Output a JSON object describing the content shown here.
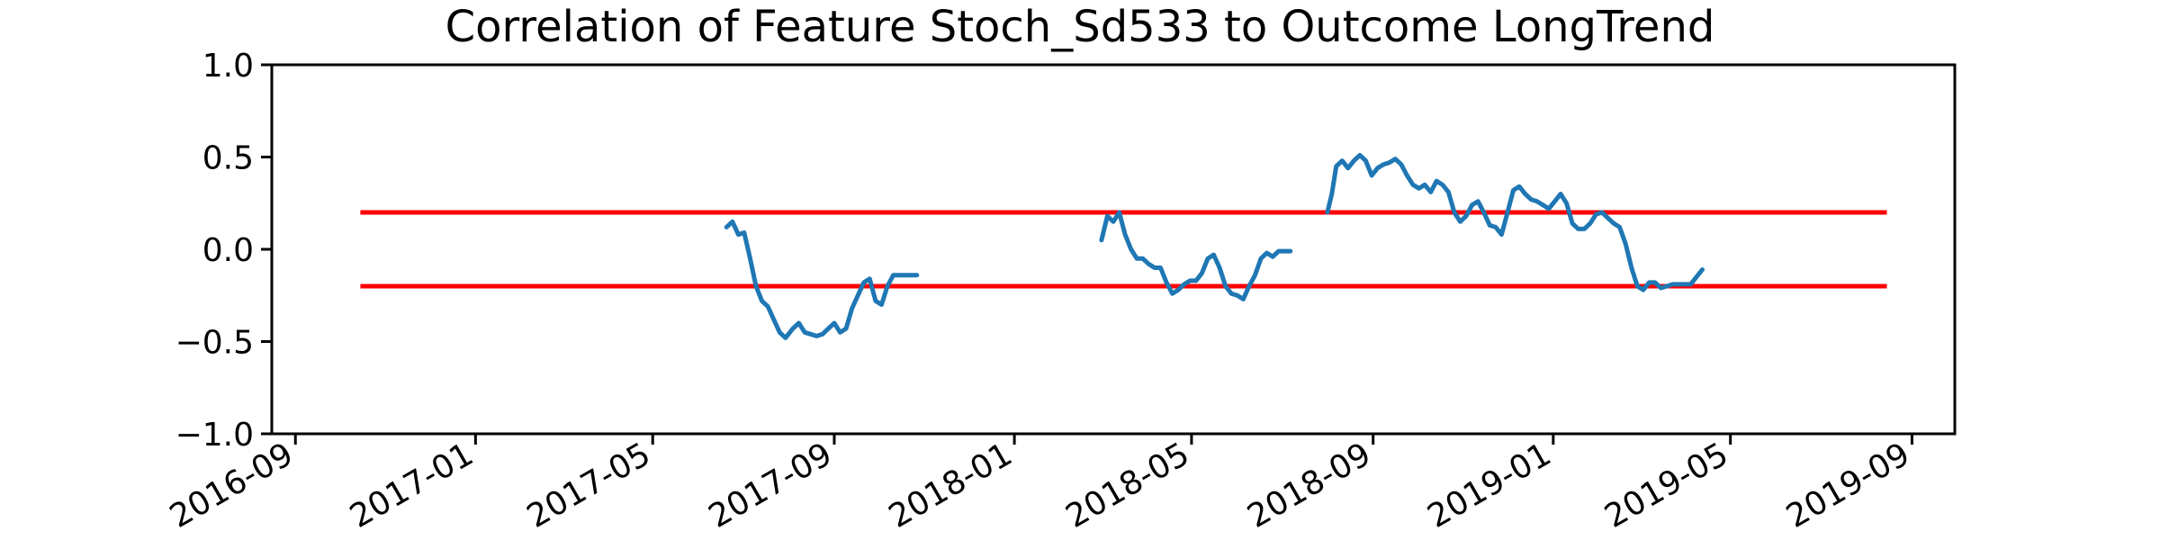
{
  "chart_data": {
    "type": "line",
    "title": "Correlation of Feature Stoch_Sd533 to Outcome LongTrend",
    "xlabel": "",
    "ylabel": "",
    "x_axis_type": "date",
    "xlim": [
      "2016-08-16",
      "2019-09-30"
    ],
    "ylim": [
      -1.0,
      1.0
    ],
    "x_ticks": [
      "2016-09",
      "2017-01",
      "2017-05",
      "2017-09",
      "2018-01",
      "2018-05",
      "2018-09",
      "2019-01",
      "2019-05",
      "2019-09"
    ],
    "y_ticks": [
      "1.0",
      "0.5",
      "0.0",
      "−0.5",
      "−1.0"
    ],
    "grid": false,
    "legend": false,
    "line_color": "#1f77b4",
    "threshold_color": "#ff0000",
    "thresholds": [
      {
        "y": 0.2,
        "x_start": "2016-10-15",
        "x_end": "2019-08-15"
      },
      {
        "y": -0.2,
        "x_start": "2016-10-15",
        "x_end": "2019-08-15"
      }
    ],
    "segments": [
      {
        "x": [
          "2017-06-20",
          "2017-06-24",
          "2017-06-28",
          "2017-07-02",
          "2017-07-06",
          "2017-07-10",
          "2017-07-14",
          "2017-07-18",
          "2017-07-22",
          "2017-07-26",
          "2017-07-30",
          "2017-08-04",
          "2017-08-08",
          "2017-08-12",
          "2017-08-16",
          "2017-08-20",
          "2017-08-24",
          "2017-08-28",
          "2017-09-01",
          "2017-09-05",
          "2017-09-09",
          "2017-09-13",
          "2017-09-17",
          "2017-09-21",
          "2017-09-25",
          "2017-09-29",
          "2017-10-03",
          "2017-10-07",
          "2017-10-11",
          "2017-10-15",
          "2017-10-19",
          "2017-10-23",
          "2017-10-27"
        ],
        "y": [
          0.12,
          0.15,
          0.08,
          0.09,
          -0.05,
          -0.2,
          -0.28,
          -0.31,
          -0.38,
          -0.45,
          -0.48,
          -0.43,
          -0.4,
          -0.45,
          -0.46,
          -0.47,
          -0.46,
          -0.43,
          -0.4,
          -0.45,
          -0.43,
          -0.32,
          -0.25,
          -0.18,
          -0.16,
          -0.28,
          -0.3,
          -0.2,
          -0.14,
          -0.14,
          -0.14,
          -0.14,
          -0.14
        ]
      },
      {
        "x": [
          "2018-03-01",
          "2018-03-05",
          "2018-03-09",
          "2018-03-13",
          "2018-03-17",
          "2018-03-21",
          "2018-03-25",
          "2018-03-29",
          "2018-04-02",
          "2018-04-06",
          "2018-04-10",
          "2018-04-14",
          "2018-04-18",
          "2018-04-22",
          "2018-04-26",
          "2018-04-30",
          "2018-05-04",
          "2018-05-08",
          "2018-05-12",
          "2018-05-16",
          "2018-05-20",
          "2018-05-24",
          "2018-05-28",
          "2018-06-01",
          "2018-06-05",
          "2018-06-09",
          "2018-06-13",
          "2018-06-17",
          "2018-06-21",
          "2018-06-25",
          "2018-06-29",
          "2018-07-03",
          "2018-07-07"
        ],
        "y": [
          0.05,
          0.18,
          0.15,
          0.2,
          0.08,
          0.0,
          -0.05,
          -0.05,
          -0.08,
          -0.1,
          -0.1,
          -0.18,
          -0.24,
          -0.22,
          -0.19,
          -0.17,
          -0.17,
          -0.13,
          -0.05,
          -0.03,
          -0.1,
          -0.2,
          -0.24,
          -0.25,
          -0.27,
          -0.2,
          -0.14,
          -0.05,
          -0.02,
          -0.04,
          -0.01,
          -0.01,
          -0.01
        ]
      },
      {
        "x": [
          "2018-08-01",
          "2018-08-04",
          "2018-08-07",
          "2018-08-11",
          "2018-08-15",
          "2018-08-19",
          "2018-08-23",
          "2018-08-27",
          "2018-08-31",
          "2018-09-04",
          "2018-09-08",
          "2018-09-12",
          "2018-09-16",
          "2018-09-20",
          "2018-09-24",
          "2018-09-28",
          "2018-10-02",
          "2018-10-06",
          "2018-10-10",
          "2018-10-14",
          "2018-10-18",
          "2018-10-22",
          "2018-10-26",
          "2018-10-30",
          "2018-11-03",
          "2018-11-07",
          "2018-11-11",
          "2018-11-15",
          "2018-11-19",
          "2018-11-23",
          "2018-11-27",
          "2018-12-01",
          "2018-12-05",
          "2018-12-09",
          "2018-12-13",
          "2018-12-17",
          "2018-12-21",
          "2018-12-25",
          "2018-12-29",
          "2019-01-02",
          "2019-01-06",
          "2019-01-10",
          "2019-01-14",
          "2019-01-18",
          "2019-01-22",
          "2019-01-26",
          "2019-01-30",
          "2019-02-03",
          "2019-02-07",
          "2019-02-11",
          "2019-02-15",
          "2019-02-19",
          "2019-02-23",
          "2019-02-27",
          "2019-03-03",
          "2019-03-07",
          "2019-03-11",
          "2019-03-15",
          "2019-03-19",
          "2019-03-23",
          "2019-03-27",
          "2019-03-31",
          "2019-04-04",
          "2019-04-08",
          "2019-04-12"
        ],
        "y": [
          0.2,
          0.3,
          0.45,
          0.48,
          0.44,
          0.48,
          0.51,
          0.48,
          0.4,
          0.44,
          0.46,
          0.47,
          0.49,
          0.46,
          0.4,
          0.35,
          0.33,
          0.35,
          0.31,
          0.37,
          0.35,
          0.31,
          0.2,
          0.15,
          0.18,
          0.24,
          0.26,
          0.2,
          0.13,
          0.12,
          0.08,
          0.2,
          0.32,
          0.34,
          0.3,
          0.27,
          0.26,
          0.24,
          0.22,
          0.26,
          0.3,
          0.25,
          0.14,
          0.11,
          0.11,
          0.14,
          0.19,
          0.2,
          0.17,
          0.14,
          0.12,
          0.03,
          -0.1,
          -0.2,
          -0.22,
          -0.18,
          -0.18,
          -0.21,
          -0.2,
          -0.19,
          -0.19,
          -0.19,
          -0.19,
          -0.15,
          -0.11
        ]
      }
    ]
  }
}
